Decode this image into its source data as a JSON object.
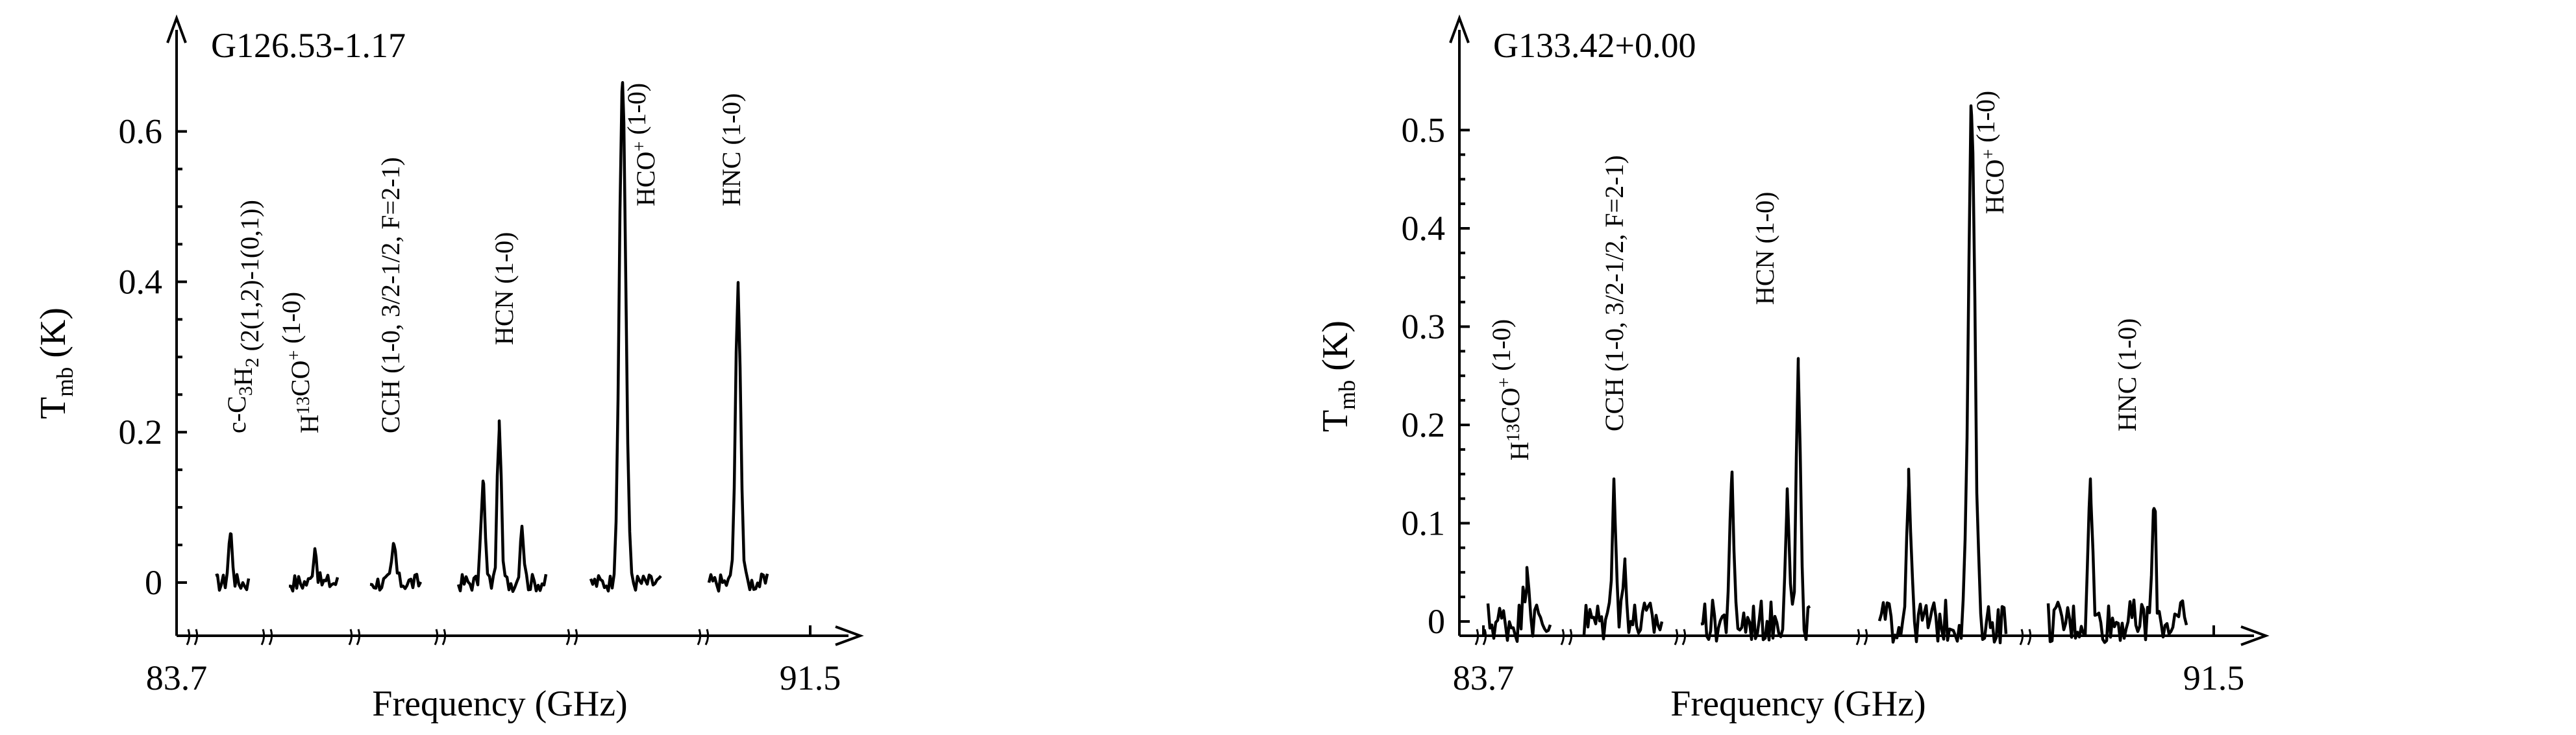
{
  "chart_data": [
    {
      "type": "line",
      "title": "G126.53-1.17",
      "xlabel": "Frequency (GHz)",
      "ylabel": "T_mb (K)",
      "ylabel_main": "T",
      "ylabel_sub": "mb",
      "ylabel_unit": " (K)",
      "x_tick_labels": [
        "83.7",
        "91.5"
      ],
      "y_ticks": [
        0,
        0.2,
        0.4,
        0.6
      ],
      "y_tick_labels": [
        "0",
        "0.2",
        "0.4",
        "0.6"
      ],
      "ylim": [
        -0.07,
        0.76
      ],
      "grid": false,
      "segments": [
        {
          "label_parts": [
            [
              "c-C",
              ""
            ],
            [
              "3",
              "sub"
            ],
            [
              "H",
              ""
            ],
            [
              "2",
              "sub"
            ],
            [
              " (2(1,2)-1(0,1))",
              ""
            ]
          ],
          "peaks": [
            0.065
          ]
        },
        {
          "label_parts": [
            [
              "H",
              ""
            ],
            [
              "13",
              "sup"
            ],
            [
              "CO",
              ""
            ],
            [
              "+",
              "sup"
            ],
            [
              " (1-0)",
              ""
            ]
          ],
          "peaks": [
            0.045
          ]
        },
        {
          "label_parts": [
            [
              "CCH (1-0, 3/2-1/2, F=2-1)",
              ""
            ]
          ],
          "peaks": [
            0.05
          ]
        },
        {
          "label_parts": [
            [
              "HCN (1-0)",
              ""
            ]
          ],
          "peaks": [
            0.135,
            0.215,
            0.075
          ]
        },
        {
          "label_parts": [
            [
              "HCO",
              ""
            ],
            [
              "+",
              "sup"
            ],
            [
              " (1-0)",
              ""
            ]
          ],
          "peaks": [
            0.665
          ]
        },
        {
          "label_parts": [
            [
              "HNC (1-0)",
              ""
            ]
          ],
          "peaks": [
            0.395
          ]
        }
      ]
    },
    {
      "type": "line",
      "title": "G133.42+0.00",
      "xlabel": "Frequency (GHz)",
      "ylabel": "T_mb (K)",
      "ylabel_main": "T",
      "ylabel_sub": "mb",
      "ylabel_unit": " (K)",
      "x_tick_labels": [
        "83.7",
        "91.5"
      ],
      "y_ticks": [
        0,
        0.1,
        0.2,
        0.3,
        0.4,
        0.5
      ],
      "y_tick_labels": [
        "0",
        "0.1",
        "0.2",
        "0.3",
        "0.4",
        "0.5"
      ],
      "ylim": [
        -0.02,
        0.61
      ],
      "grid": false,
      "segments": [
        {
          "label_parts": [
            [
              "H",
              ""
            ],
            [
              "13",
              "sup"
            ],
            [
              "CO",
              ""
            ],
            [
              "+",
              "sup"
            ],
            [
              " (1-0)",
              ""
            ]
          ],
          "peaks": [
            0.055
          ]
        },
        {
          "label_parts": [
            [
              "CCH (1-0, 3/2-1/2, F=2-1)",
              ""
            ]
          ],
          "peaks": [
            0.145,
            0.06
          ]
        },
        {
          "label_parts": [
            [
              "HCN (1-0)",
              ""
            ]
          ],
          "peaks": [
            0.14,
            0.135,
            0.26
          ]
        },
        {
          "label_parts": [
            [
              "HCO",
              ""
            ],
            [
              "+",
              "sup"
            ],
            [
              " (1-0)",
              ""
            ]
          ],
          "peaks": [
            0.155,
            0.515
          ]
        },
        {
          "label_parts": [
            [
              "HNC (1-0)",
              ""
            ]
          ],
          "peaks": [
            0.145,
            0.115
          ]
        }
      ]
    }
  ]
}
